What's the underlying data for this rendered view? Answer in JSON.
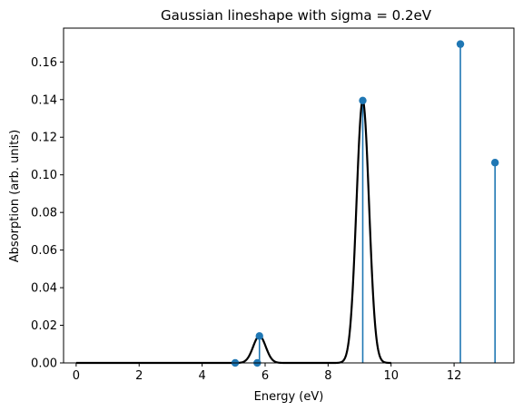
{
  "chart_data": {
    "type": "line",
    "title": "Gaussian lineshape with sigma = 0.2eV",
    "xlabel": "Energy (eV)",
    "ylabel": "Absorption (arb. units)",
    "xlim": [
      -0.4,
      13.9
    ],
    "ylim": [
      0,
      0.178
    ],
    "xticks": [
      0,
      2,
      4,
      6,
      8,
      10,
      12
    ],
    "yticks": [
      0.0,
      0.02,
      0.04,
      0.06,
      0.08,
      0.1,
      0.12,
      0.14,
      0.16
    ],
    "xtick_labels": [
      "0",
      "2",
      "4",
      "6",
      "8",
      "10",
      "12"
    ],
    "ytick_labels": [
      "0.00",
      "0.02",
      "0.04",
      "0.06",
      "0.08",
      "0.10",
      "0.12",
      "0.14",
      "0.16"
    ],
    "grid": false,
    "sigma": 0.2,
    "stems": {
      "color": "#1f77b4",
      "x": [
        5.05,
        5.75,
        5.82,
        9.1,
        12.2,
        13.3
      ],
      "y": [
        0.0,
        0.0,
        0.0143,
        0.1395,
        0.1695,
        0.1065
      ]
    },
    "curve": {
      "color": "#000000",
      "x_range": [
        0,
        10
      ]
    }
  }
}
